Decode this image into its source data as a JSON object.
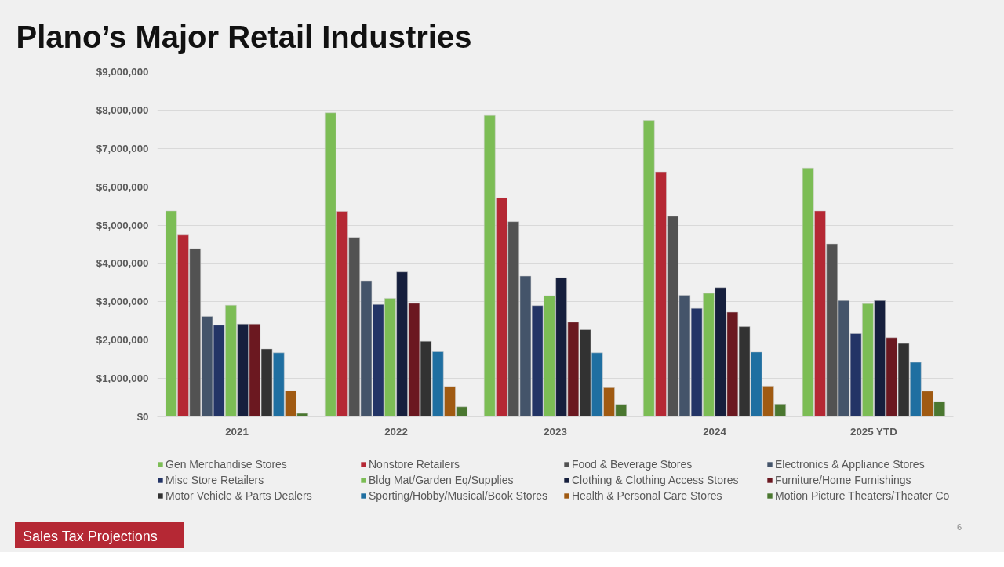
{
  "chart_data": {
    "type": "bar",
    "title": "Plano’s Major Retail Industries",
    "categories": [
      "2021",
      "2022",
      "2023",
      "2024",
      "2025 YTD"
    ],
    "series": [
      {
        "name": "Gen Merchandise Stores",
        "color": "#7cbd55",
        "values": [
          5370000,
          7930000,
          7860000,
          7730000,
          6490000
        ]
      },
      {
        "name": "Nonstore Retailers",
        "color": "#b52834",
        "values": [
          4740000,
          5360000,
          5710000,
          6390000,
          5370000
        ]
      },
      {
        "name": "Food & Beverage Stores",
        "color": "#525252",
        "values": [
          4390000,
          4680000,
          5090000,
          5230000,
          4510000
        ]
      },
      {
        "name": "Electronics & Appliance Stores",
        "color": "#44546a",
        "values": [
          2620000,
          3550000,
          3670000,
          3170000,
          3030000
        ]
      },
      {
        "name": "Misc Store Retailers",
        "color": "#233466",
        "values": [
          2390000,
          2930000,
          2900000,
          2830000,
          2170000
        ]
      },
      {
        "name": "Bldg Mat/Garden Eq/Supplies",
        "color": "#7cbd55",
        "values": [
          2910000,
          3090000,
          3160000,
          3220000,
          2950000
        ]
      },
      {
        "name": "Clothing & Clothing Access Stores",
        "color": "#161f3d",
        "values": [
          2420000,
          3780000,
          3630000,
          3370000,
          3030000
        ]
      },
      {
        "name": "Furniture/Home Furnishings",
        "color": "#6b1820",
        "values": [
          2420000,
          2960000,
          2470000,
          2730000,
          2060000
        ]
      },
      {
        "name": "Motor Vehicle & Parts Dealers",
        "color": "#323232",
        "values": [
          1770000,
          1970000,
          2270000,
          2350000,
          1910000
        ]
      },
      {
        "name": "Sporting/Hobby/Musical/Book Stores",
        "color": "#1f6fa1",
        "values": [
          1670000,
          1700000,
          1670000,
          1690000,
          1420000
        ]
      },
      {
        "name": "Health & Personal Care Stores",
        "color": "#a05a12",
        "values": [
          680000,
          790000,
          760000,
          800000,
          670000
        ]
      },
      {
        "name": "Motion Picture Theaters/Theater Co",
        "color": "#4a7730",
        "values": [
          90000,
          260000,
          320000,
          330000,
          400000
        ]
      }
    ],
    "ylim": [
      0,
      9000000
    ],
    "yticks": [
      {
        "value": 0,
        "label": "$0"
      },
      {
        "value": 1000000,
        "label": "$1,000,000"
      },
      {
        "value": 2000000,
        "label": "$2,000,000"
      },
      {
        "value": 3000000,
        "label": "$3,000,000"
      },
      {
        "value": 4000000,
        "label": "$4,000,000"
      },
      {
        "value": 5000000,
        "label": "$5,000,000"
      },
      {
        "value": 6000000,
        "label": "$6,000,000"
      },
      {
        "value": 7000000,
        "label": "$7,000,000"
      },
      {
        "value": 8000000,
        "label": "$8,000,000"
      },
      {
        "value": 9000000,
        "label": "$9,000,000"
      }
    ],
    "grid": "y",
    "legend": "bottom",
    "annotations": [
      "Sales Tax Projections",
      "6"
    ]
  }
}
